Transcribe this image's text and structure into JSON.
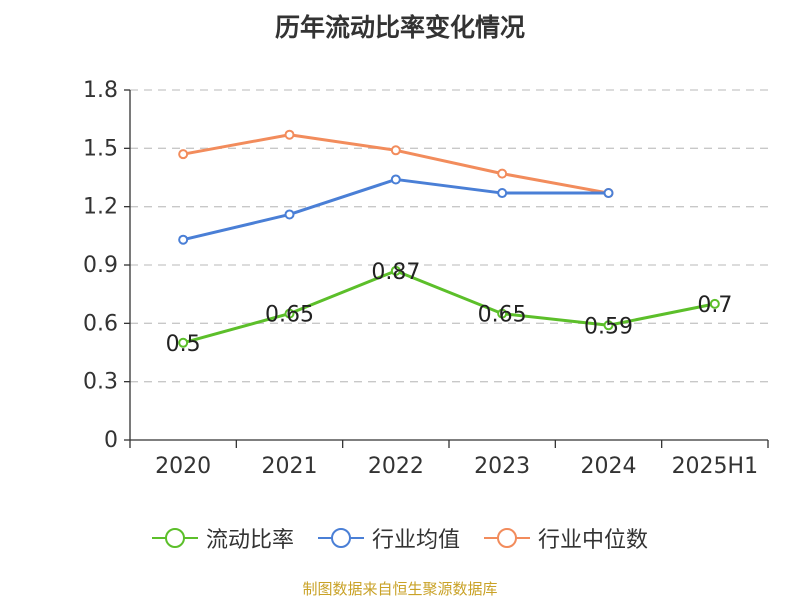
{
  "chart_data": {
    "type": "line",
    "title": "历年流动比率变化情况",
    "categories": [
      "2020",
      "2021",
      "2022",
      "2023",
      "2024",
      "2025H1"
    ],
    "ylim": [
      0,
      1.8
    ],
    "yticks": [
      "0",
      "0.3",
      "0.6",
      "0.9",
      "1.2",
      "1.5",
      "1.8"
    ],
    "grid": true,
    "legend_position": "bottom",
    "series": [
      {
        "name": "流动比率",
        "color": "#5cbf2a",
        "values": [
          0.5,
          0.65,
          0.87,
          0.65,
          0.59,
          0.7
        ],
        "labels": [
          "0.5",
          "0.65",
          "0.87",
          "0.65",
          "0.59",
          "0.7"
        ]
      },
      {
        "name": "行业均值",
        "color": "#4a7fd6",
        "values": [
          1.03,
          1.16,
          1.34,
          1.27,
          1.27,
          null
        ]
      },
      {
        "name": "行业中位数",
        "color": "#f28c5c",
        "values": [
          1.47,
          1.57,
          1.49,
          1.37,
          1.27,
          null
        ]
      }
    ]
  },
  "source": "制图数据来自恒生聚源数据库"
}
